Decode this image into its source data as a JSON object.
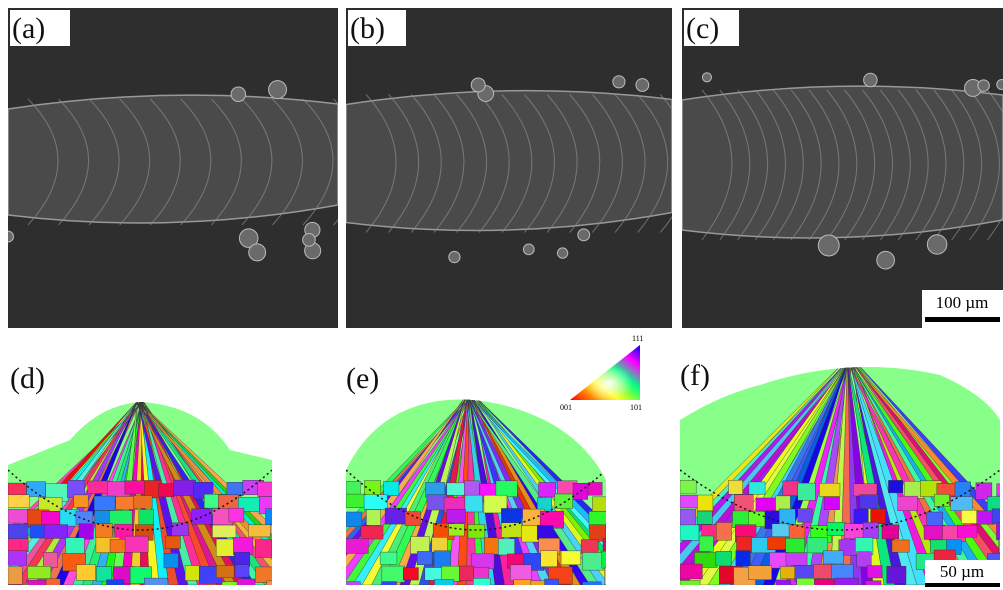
{
  "panels": [
    {
      "label": "(a)"
    },
    {
      "label": "(b)"
    },
    {
      "label": "(c)",
      "scale_bar": "100 µm"
    },
    {
      "label": "(d)"
    },
    {
      "label": "(e)"
    },
    {
      "label": "(f)",
      "scale_bar": "50 µm"
    }
  ],
  "legend": {
    "top": "111",
    "left": "001",
    "right": "101"
  }
}
